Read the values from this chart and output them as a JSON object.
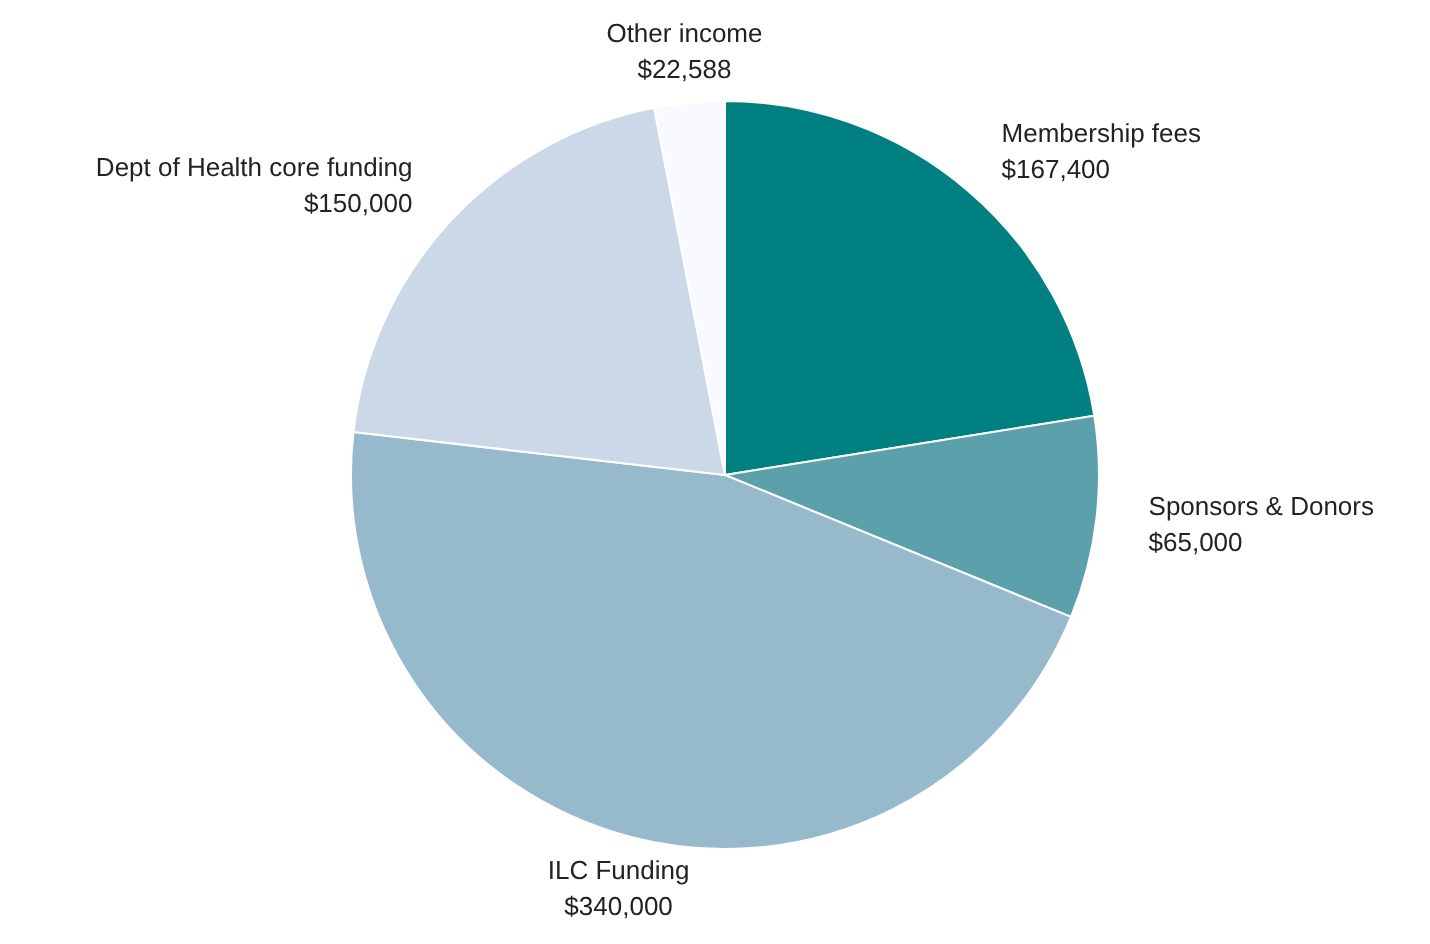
{
  "chart_data": {
    "type": "pie",
    "categories": [
      "Membership fees",
      "Sponsors & Donors",
      "ILC Funding",
      "Dept of Health core funding",
      "Other income"
    ],
    "values": [
      167400,
      65000,
      340000,
      150000,
      22588
    ],
    "colors": [
      "#008080",
      "#5ba0ab",
      "#96b9cc",
      "#cbd8e8",
      "#f8faff"
    ],
    "value_labels": [
      "$167,400",
      "$65,000",
      "$340,000",
      "$150,000",
      "$22,588"
    ]
  }
}
